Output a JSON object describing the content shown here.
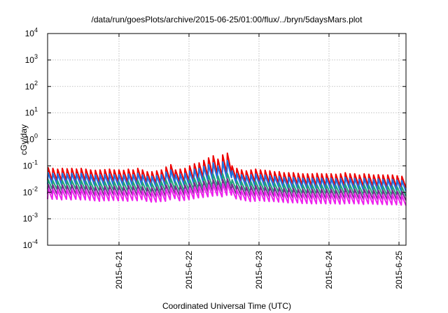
{
  "chart_data": {
    "type": "line",
    "title": "/data/run/goesPlots/archive/2015-06-25/01:00/flux/../bryn/5daysMars.plot",
    "xlabel": "Coordinated Universal Time (UTC)",
    "ylabel": "cGy/day",
    "y_scale": "log",
    "ylim": [
      0.0001,
      10000
    ],
    "y_ticks": [
      {
        "value": 0.0001,
        "base": "10",
        "exp": "-4"
      },
      {
        "value": 0.001,
        "base": "10",
        "exp": "-3"
      },
      {
        "value": 0.01,
        "base": "10",
        "exp": "-2"
      },
      {
        "value": 0.1,
        "base": "10",
        "exp": "-1"
      },
      {
        "value": 1,
        "base": "10",
        "exp": "0"
      },
      {
        "value": 10,
        "base": "10",
        "exp": "1"
      },
      {
        "value": 100,
        "base": "10",
        "exp": "2"
      },
      {
        "value": 1000,
        "base": "10",
        "exp": "3"
      },
      {
        "value": 10000,
        "base": "10",
        "exp": "4"
      }
    ],
    "x_ticks": [
      "2015-6-21",
      "2015-6-22",
      "2015-6-23",
      "2015-6-24",
      "2015-6-25"
    ],
    "grid": true,
    "legend": "none",
    "series": [
      {
        "color": "#ee0000",
        "peaks": [
          0.085,
          0.08,
          0.075,
          0.08,
          0.078,
          0.08,
          0.076,
          0.08,
          0.075,
          0.07,
          0.068,
          0.07,
          0.072,
          0.075,
          0.07,
          0.07,
          0.068,
          0.075,
          0.07,
          0.08,
          0.07,
          0.06,
          0.06,
          0.065,
          0.07,
          0.09,
          0.11,
          0.07,
          0.075,
          0.08,
          0.1,
          0.12,
          0.13,
          0.16,
          0.2,
          0.24,
          0.18,
          0.26,
          0.3,
          0.1,
          0.08,
          0.07,
          0.065,
          0.07,
          0.075,
          0.07,
          0.068,
          0.065,
          0.06,
          0.06,
          0.055,
          0.055,
          0.055,
          0.052,
          0.05,
          0.05,
          0.05,
          0.052,
          0.05,
          0.05,
          0.05,
          0.048,
          0.05,
          0.055,
          0.05,
          0.05,
          0.045,
          0.05,
          0.048,
          0.045,
          0.046,
          0.045,
          0.045,
          0.045,
          0.042,
          0.04
        ],
        "troughs": [
          0.028,
          0.028,
          0.027,
          0.028,
          0.027,
          0.028,
          0.027,
          0.027,
          0.026,
          0.025,
          0.024,
          0.025,
          0.025,
          0.026,
          0.025,
          0.025,
          0.024,
          0.026,
          0.025,
          0.027,
          0.024,
          0.022,
          0.022,
          0.023,
          0.024,
          0.028,
          0.032,
          0.025,
          0.026,
          0.027,
          0.03,
          0.034,
          0.036,
          0.04,
          0.045,
          0.05,
          0.042,
          0.052,
          0.055,
          0.032,
          0.027,
          0.025,
          0.023,
          0.024,
          0.025,
          0.024,
          0.023,
          0.023,
          0.022,
          0.021,
          0.02,
          0.02,
          0.02,
          0.019,
          0.019,
          0.018,
          0.018,
          0.019,
          0.018,
          0.018,
          0.018,
          0.017,
          0.018,
          0.019,
          0.018,
          0.018,
          0.017,
          0.018,
          0.017,
          0.017,
          0.017,
          0.016,
          0.016,
          0.016,
          0.016,
          0.015
        ]
      },
      {
        "color": "#1f6fe0",
        "peaks": [
          0.055,
          0.052,
          0.05,
          0.052,
          0.05,
          0.052,
          0.05,
          0.052,
          0.049,
          0.046,
          0.045,
          0.046,
          0.047,
          0.049,
          0.046,
          0.046,
          0.045,
          0.049,
          0.046,
          0.052,
          0.045,
          0.04,
          0.04,
          0.043,
          0.046,
          0.058,
          0.07,
          0.046,
          0.049,
          0.052,
          0.064,
          0.075,
          0.08,
          0.095,
          0.11,
          0.13,
          0.1,
          0.14,
          0.16,
          0.065,
          0.052,
          0.046,
          0.043,
          0.046,
          0.049,
          0.046,
          0.045,
          0.043,
          0.04,
          0.04,
          0.037,
          0.037,
          0.037,
          0.035,
          0.034,
          0.034,
          0.034,
          0.035,
          0.034,
          0.034,
          0.034,
          0.033,
          0.034,
          0.037,
          0.034,
          0.034,
          0.031,
          0.034,
          0.033,
          0.031,
          0.032,
          0.031,
          0.031,
          0.031,
          0.029,
          0.028
        ],
        "troughs": [
          0.02,
          0.02,
          0.019,
          0.02,
          0.019,
          0.02,
          0.019,
          0.019,
          0.018,
          0.018,
          0.017,
          0.018,
          0.018,
          0.018,
          0.018,
          0.018,
          0.017,
          0.018,
          0.018,
          0.019,
          0.017,
          0.016,
          0.016,
          0.016,
          0.017,
          0.02,
          0.022,
          0.018,
          0.018,
          0.019,
          0.021,
          0.023,
          0.024,
          0.027,
          0.03,
          0.033,
          0.028,
          0.034,
          0.036,
          0.022,
          0.019,
          0.018,
          0.016,
          0.017,
          0.018,
          0.017,
          0.016,
          0.016,
          0.016,
          0.015,
          0.014,
          0.014,
          0.014,
          0.014,
          0.014,
          0.013,
          0.013,
          0.014,
          0.013,
          0.013,
          0.013,
          0.012,
          0.013,
          0.014,
          0.013,
          0.013,
          0.012,
          0.013,
          0.012,
          0.012,
          0.012,
          0.012,
          0.012,
          0.012,
          0.011,
          0.011
        ]
      },
      {
        "color": "#22a37a",
        "peaks": [
          0.03,
          0.028,
          0.027,
          0.028,
          0.027,
          0.028,
          0.027,
          0.028,
          0.026,
          0.025,
          0.024,
          0.025,
          0.025,
          0.026,
          0.025,
          0.025,
          0.024,
          0.026,
          0.025,
          0.028,
          0.024,
          0.022,
          0.022,
          0.023,
          0.025,
          0.029,
          0.033,
          0.025,
          0.026,
          0.028,
          0.031,
          0.034,
          0.036,
          0.04,
          0.044,
          0.048,
          0.042,
          0.05,
          0.052,
          0.03,
          0.027,
          0.025,
          0.023,
          0.025,
          0.026,
          0.025,
          0.024,
          0.023,
          0.022,
          0.022,
          0.02,
          0.02,
          0.02,
          0.019,
          0.019,
          0.019,
          0.019,
          0.019,
          0.019,
          0.019,
          0.019,
          0.018,
          0.019,
          0.02,
          0.019,
          0.019,
          0.017,
          0.019,
          0.018,
          0.017,
          0.018,
          0.017,
          0.017,
          0.017,
          0.016,
          0.016
        ],
        "troughs": [
          0.013,
          0.013,
          0.012,
          0.013,
          0.012,
          0.013,
          0.012,
          0.012,
          0.012,
          0.011,
          0.011,
          0.011,
          0.011,
          0.012,
          0.011,
          0.011,
          0.011,
          0.012,
          0.011,
          0.012,
          0.011,
          0.01,
          0.01,
          0.01,
          0.011,
          0.012,
          0.013,
          0.011,
          0.011,
          0.012,
          0.013,
          0.014,
          0.014,
          0.015,
          0.016,
          0.017,
          0.015,
          0.017,
          0.018,
          0.013,
          0.012,
          0.011,
          0.01,
          0.011,
          0.011,
          0.011,
          0.01,
          0.01,
          0.01,
          0.0095,
          0.009,
          0.009,
          0.009,
          0.0088,
          0.0088,
          0.0085,
          0.0085,
          0.0088,
          0.0085,
          0.0085,
          0.0085,
          0.0082,
          0.0085,
          0.0088,
          0.0085,
          0.0085,
          0.008,
          0.0085,
          0.0082,
          0.008,
          0.008,
          0.0078,
          0.0078,
          0.0078,
          0.0075,
          0.0072
        ]
      },
      {
        "color": "#7a2a90",
        "peaks": [
          0.02,
          0.019,
          0.018,
          0.019,
          0.018,
          0.019,
          0.018,
          0.019,
          0.018,
          0.017,
          0.016,
          0.017,
          0.017,
          0.018,
          0.017,
          0.017,
          0.016,
          0.018,
          0.017,
          0.019,
          0.016,
          0.015,
          0.015,
          0.016,
          0.017,
          0.019,
          0.021,
          0.017,
          0.018,
          0.019,
          0.021,
          0.023,
          0.024,
          0.026,
          0.028,
          0.03,
          0.027,
          0.031,
          0.032,
          0.02,
          0.018,
          0.017,
          0.016,
          0.017,
          0.018,
          0.017,
          0.016,
          0.016,
          0.015,
          0.015,
          0.014,
          0.014,
          0.014,
          0.013,
          0.013,
          0.013,
          0.013,
          0.013,
          0.013,
          0.013,
          0.013,
          0.012,
          0.013,
          0.014,
          0.013,
          0.013,
          0.012,
          0.013,
          0.012,
          0.012,
          0.012,
          0.012,
          0.012,
          0.012,
          0.011,
          0.011
        ],
        "troughs": [
          0.0085,
          0.0085,
          0.008,
          0.0085,
          0.008,
          0.0085,
          0.008,
          0.008,
          0.008,
          0.0075,
          0.0072,
          0.0075,
          0.0075,
          0.008,
          0.0075,
          0.0075,
          0.0072,
          0.008,
          0.0075,
          0.0082,
          0.0072,
          0.0068,
          0.0068,
          0.007,
          0.0072,
          0.0082,
          0.009,
          0.0075,
          0.0078,
          0.0082,
          0.0088,
          0.0095,
          0.0098,
          0.0105,
          0.011,
          0.0115,
          0.0105,
          0.0118,
          0.012,
          0.0088,
          0.008,
          0.0075,
          0.007,
          0.0072,
          0.0075,
          0.0072,
          0.007,
          0.007,
          0.0068,
          0.0065,
          0.0062,
          0.0062,
          0.0062,
          0.006,
          0.006,
          0.0058,
          0.0058,
          0.006,
          0.0058,
          0.0058,
          0.0058,
          0.0056,
          0.0058,
          0.006,
          0.0058,
          0.0058,
          0.0055,
          0.0058,
          0.0056,
          0.0055,
          0.0055,
          0.0054,
          0.0054,
          0.0054,
          0.0052,
          0.005
        ]
      },
      {
        "color": "#ee22ee",
        "peaks": [
          0.014,
          0.013,
          0.0125,
          0.013,
          0.0125,
          0.013,
          0.0125,
          0.013,
          0.0122,
          0.0115,
          0.011,
          0.0115,
          0.0115,
          0.0122,
          0.0115,
          0.0115,
          0.011,
          0.0122,
          0.0115,
          0.013,
          0.011,
          0.0102,
          0.0102,
          0.0108,
          0.0115,
          0.013,
          0.0145,
          0.0115,
          0.012,
          0.013,
          0.0145,
          0.0155,
          0.016,
          0.0175,
          0.019,
          0.02,
          0.018,
          0.021,
          0.022,
          0.0135,
          0.0122,
          0.0115,
          0.0108,
          0.0115,
          0.012,
          0.0115,
          0.011,
          0.0108,
          0.0102,
          0.0102,
          0.0095,
          0.0095,
          0.0095,
          0.009,
          0.009,
          0.009,
          0.009,
          0.009,
          0.009,
          0.009,
          0.009,
          0.0085,
          0.009,
          0.0095,
          0.009,
          0.009,
          0.0082,
          0.009,
          0.0085,
          0.0082,
          0.0083,
          0.0082,
          0.0082,
          0.0082,
          0.0078,
          0.0076
        ],
        "troughs": [
          0.0055,
          0.0055,
          0.0052,
          0.0055,
          0.0052,
          0.0055,
          0.0052,
          0.0052,
          0.005,
          0.0048,
          0.0046,
          0.0048,
          0.0048,
          0.005,
          0.0048,
          0.0048,
          0.0046,
          0.005,
          0.0048,
          0.0053,
          0.0046,
          0.0043,
          0.0043,
          0.0045,
          0.0046,
          0.0053,
          0.0058,
          0.0048,
          0.005,
          0.0053,
          0.0057,
          0.0062,
          0.0064,
          0.0068,
          0.0072,
          0.0075,
          0.0068,
          0.0077,
          0.0078,
          0.0057,
          0.0052,
          0.0048,
          0.0045,
          0.0046,
          0.0048,
          0.0046,
          0.0045,
          0.0045,
          0.0043,
          0.0042,
          0.004,
          0.004,
          0.004,
          0.0038,
          0.0038,
          0.0037,
          0.0037,
          0.0038,
          0.0037,
          0.0037,
          0.0037,
          0.0036,
          0.0037,
          0.0038,
          0.0037,
          0.0037,
          0.0035,
          0.0037,
          0.0036,
          0.0035,
          0.0035,
          0.0034,
          0.0034,
          0.0034,
          0.0033,
          0.0032
        ]
      }
    ]
  }
}
